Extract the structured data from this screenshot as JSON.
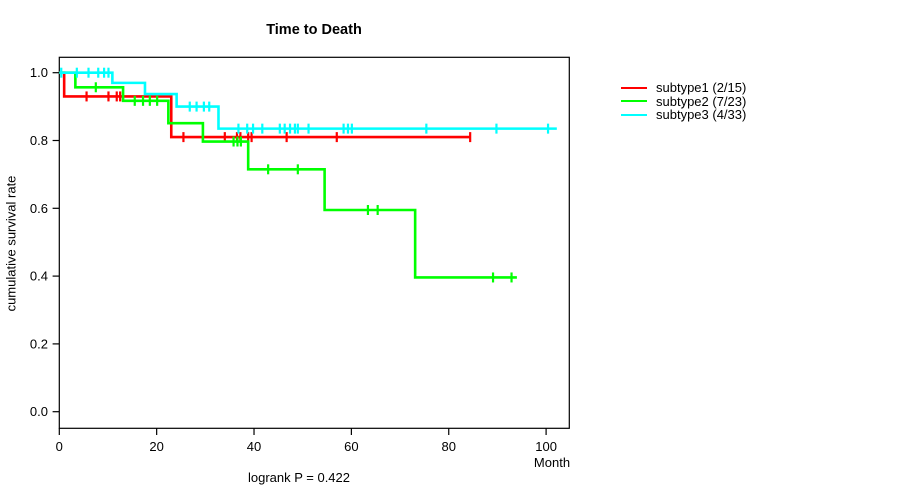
{
  "page": {
    "background": "#ffffff"
  },
  "chart_data": {
    "type": "line",
    "variant": "kaplan-meier-step-curves",
    "title": "Time to Death",
    "xlabel": "Month",
    "ylabel": "cumulative survival rate",
    "footnote": "logrank P = 0.422",
    "x_range": [
      0,
      104.8
    ],
    "y_range": [
      0.0,
      1.0
    ],
    "xticks": [
      0,
      20,
      40,
      60,
      80,
      100
    ],
    "yticks": [
      0.0,
      0.2,
      0.4,
      0.6,
      0.8,
      1.0
    ],
    "grid": false,
    "legend_position": "right-outside",
    "axis_color": "#000000",
    "series": [
      {
        "name": "subtype1 (2/15)",
        "color": "#FF0000",
        "steps": [
          [
            0,
            1.0
          ],
          [
            1.0,
            0.93
          ],
          [
            23.0,
            0.81
          ]
        ],
        "end_month": 84.4,
        "censor_marks": [
          [
            5.6,
            0.93
          ],
          [
            10.1,
            0.93
          ],
          [
            11.8,
            0.93
          ],
          [
            12.5,
            0.93
          ],
          [
            25.5,
            0.81
          ],
          [
            34.0,
            0.81
          ],
          [
            36.5,
            0.81
          ],
          [
            37.2,
            0.81
          ],
          [
            38.8,
            0.81
          ],
          [
            39.5,
            0.81
          ],
          [
            46.7,
            0.81
          ],
          [
            57.0,
            0.81
          ],
          [
            84.4,
            0.81
          ]
        ]
      },
      {
        "name": "subtype2 (7/23)",
        "color": "#00FF00",
        "steps": [
          [
            0,
            1.0
          ],
          [
            3.3,
            0.957
          ],
          [
            13.1,
            0.917
          ],
          [
            22.4,
            0.851
          ],
          [
            29.5,
            0.797
          ],
          [
            38.8,
            0.715
          ],
          [
            54.5,
            0.595
          ],
          [
            73.1,
            0.396
          ]
        ],
        "end_month": 94.0,
        "censor_marks": [
          [
            7.5,
            0.957
          ],
          [
            15.5,
            0.917
          ],
          [
            17.2,
            0.917
          ],
          [
            18.6,
            0.917
          ],
          [
            20.1,
            0.917
          ],
          [
            35.8,
            0.797
          ],
          [
            36.6,
            0.797
          ],
          [
            37.3,
            0.797
          ],
          [
            42.9,
            0.715
          ],
          [
            49.0,
            0.715
          ],
          [
            63.4,
            0.595
          ],
          [
            65.4,
            0.595
          ],
          [
            89.1,
            0.396
          ],
          [
            92.9,
            0.396
          ]
        ]
      },
      {
        "name": "subtype3 (4/33)",
        "color": "#00FFFF",
        "steps": [
          [
            0,
            1.0
          ],
          [
            10.9,
            0.97
          ],
          [
            17.6,
            0.937
          ],
          [
            24.1,
            0.9
          ],
          [
            32.7,
            0.835
          ]
        ],
        "end_month": 102.2,
        "censor_marks": [
          [
            0.4,
            1.0
          ],
          [
            3.6,
            1.0
          ],
          [
            6.0,
            1.0
          ],
          [
            8.0,
            1.0
          ],
          [
            9.2,
            1.0
          ],
          [
            10.1,
            1.0
          ],
          [
            26.8,
            0.9
          ],
          [
            28.2,
            0.9
          ],
          [
            29.7,
            0.9
          ],
          [
            30.8,
            0.9
          ],
          [
            36.8,
            0.835
          ],
          [
            38.6,
            0.835
          ],
          [
            39.8,
            0.835
          ],
          [
            41.7,
            0.835
          ],
          [
            45.3,
            0.835
          ],
          [
            46.3,
            0.835
          ],
          [
            47.4,
            0.835
          ],
          [
            48.4,
            0.835
          ],
          [
            49.0,
            0.835
          ],
          [
            51.2,
            0.835
          ],
          [
            58.4,
            0.835
          ],
          [
            59.3,
            0.835
          ],
          [
            60.1,
            0.835
          ],
          [
            75.4,
            0.835
          ],
          [
            89.8,
            0.835
          ],
          [
            100.4,
            0.835
          ]
        ]
      }
    ]
  }
}
